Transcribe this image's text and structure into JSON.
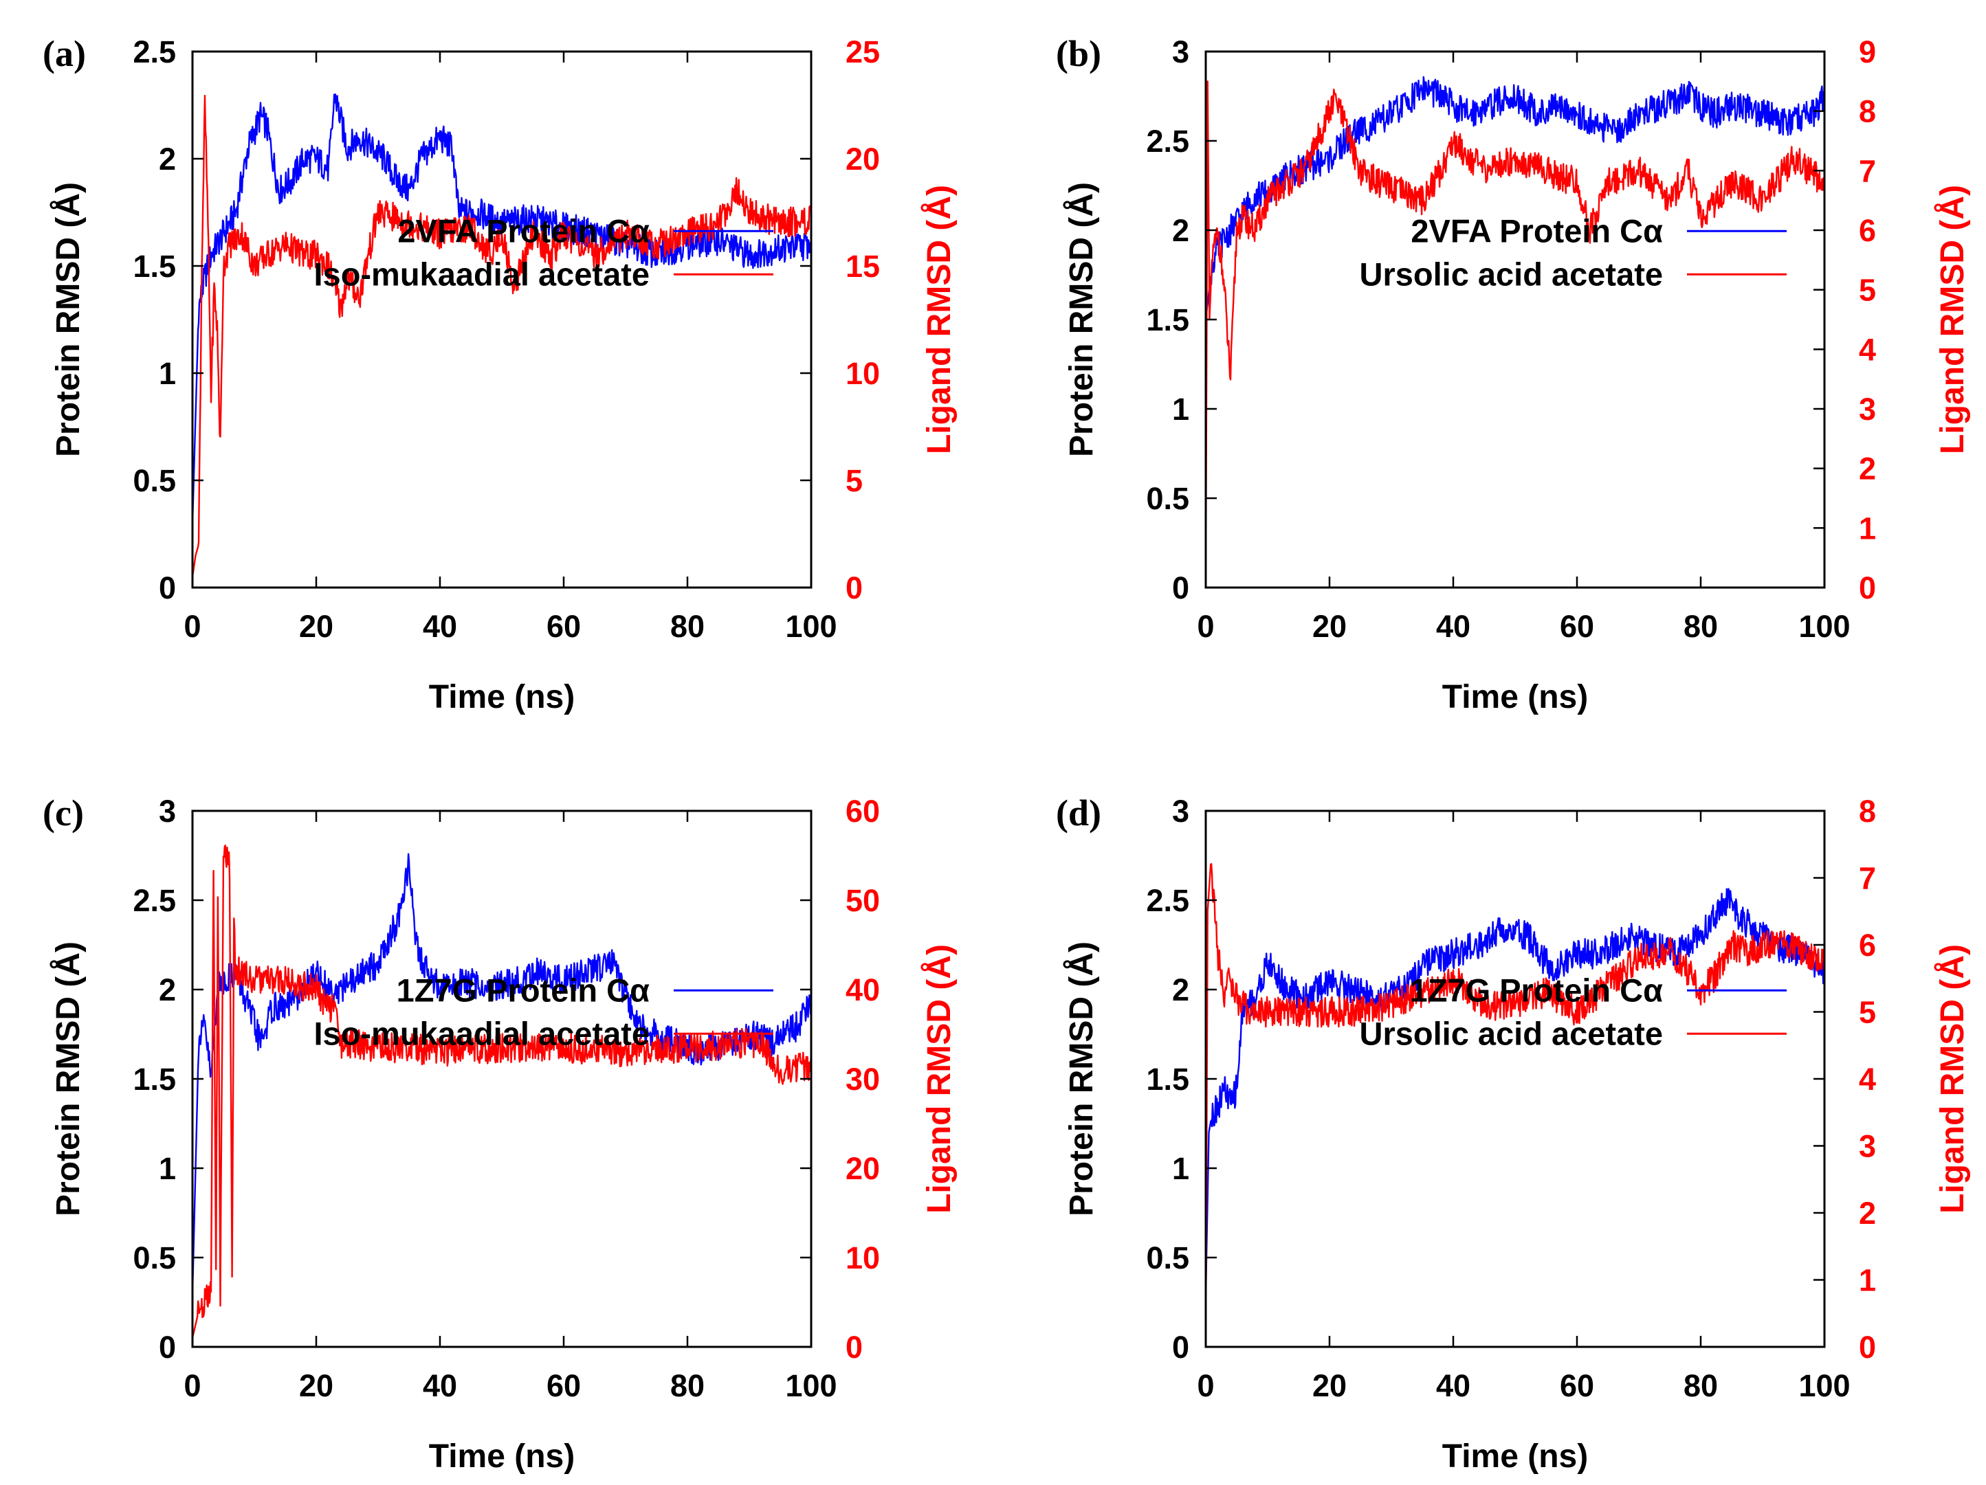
{
  "colors": {
    "protein": "#0000ff",
    "ligand": "#ff0000",
    "axis": "#000000"
  },
  "chart_data": [
    {
      "panel": "(a)",
      "type": "line",
      "xlabel": "Time (ns)",
      "ylabel": "Protein RMSD (Å)",
      "y2label": "Ligand RMSD (Å)",
      "xlim": [
        0,
        100
      ],
      "ylim": [
        0,
        2.5
      ],
      "y2lim": [
        0,
        25
      ],
      "xticks": [
        0,
        20,
        40,
        60,
        80,
        100
      ],
      "yticks": [
        0,
        0.5,
        1,
        1.5,
        2,
        2.5
      ],
      "y2ticks": [
        0,
        5,
        10,
        15,
        20,
        25
      ],
      "legend_position": "center-right",
      "series": [
        {
          "name": "2VFA Protein Cα",
          "axis": "left",
          "color": "#0000ff",
          "x": [
            0,
            1,
            2,
            3,
            5,
            7,
            9,
            11,
            12,
            14,
            16,
            18,
            20,
            22,
            23,
            25,
            27,
            29,
            31,
            33,
            35,
            37,
            40,
            42,
            43,
            46,
            50,
            55,
            60,
            65,
            70,
            75,
            80,
            85,
            90,
            95,
            100
          ],
          "y": [
            0.3,
            1.3,
            1.45,
            1.55,
            1.65,
            1.75,
            2.05,
            2.2,
            2.15,
            1.85,
            1.9,
            2.0,
            2.0,
            1.95,
            2.3,
            2.05,
            2.1,
            2.05,
            2.0,
            1.9,
            1.85,
            2.0,
            2.1,
            2.05,
            1.75,
            1.75,
            1.7,
            1.72,
            1.68,
            1.65,
            1.6,
            1.55,
            1.6,
            1.62,
            1.55,
            1.58,
            1.6
          ]
        },
        {
          "name": "Iso-mukaadial acetate",
          "axis": "right",
          "color": "#ff0000",
          "x": [
            0,
            0.5,
            1,
            1.5,
            2,
            2.5,
            3,
            3.5,
            4,
            4.5,
            5,
            6,
            8,
            10,
            12,
            15,
            18,
            20,
            22,
            24,
            25,
            27,
            28,
            30,
            35,
            40,
            45,
            48,
            50,
            52,
            55,
            58,
            60,
            65,
            70,
            75,
            80,
            85,
            88,
            90,
            95,
            100
          ],
          "y": [
            0.5,
            1.5,
            2,
            15,
            22.5,
            17,
            9,
            14,
            12,
            6.5,
            15,
            16,
            16.5,
            15,
            15.5,
            16,
            15.5,
            15.5,
            15,
            13,
            14.5,
            13.5,
            15,
            17.5,
            17,
            16.5,
            16.8,
            15.5,
            16.5,
            14,
            16.5,
            15.5,
            16.5,
            15.5,
            16.5,
            16,
            16.5,
            17,
            18.5,
            17.5,
            17,
            17.2
          ]
        }
      ]
    },
    {
      "panel": "(b)",
      "type": "line",
      "xlabel": "Time (ns)",
      "ylabel": "Protein RMSD (Å)",
      "y2label": "Ligand RMSD (Å)",
      "xlim": [
        0,
        100
      ],
      "ylim": [
        0,
        3
      ],
      "y2lim": [
        0,
        9
      ],
      "xticks": [
        0,
        20,
        40,
        60,
        80,
        100
      ],
      "yticks": [
        0,
        0.5,
        1,
        1.5,
        2,
        2.5,
        3
      ],
      "y2ticks": [
        0,
        1,
        2,
        3,
        4,
        5,
        6,
        7,
        8,
        9
      ],
      "legend_position": "center-right",
      "series": [
        {
          "name": "2VFA Protein Cα",
          "axis": "left",
          "color": "#0000ff",
          "x": [
            0,
            1,
            2,
            4,
            6,
            8,
            10,
            13,
            16,
            20,
            24,
            28,
            32,
            35,
            38,
            42,
            46,
            50,
            54,
            58,
            62,
            66,
            70,
            74,
            78,
            82,
            86,
            90,
            94,
            98,
            100
          ],
          "y": [
            1.5,
            1.8,
            1.9,
            2.0,
            2.1,
            2.2,
            2.2,
            2.3,
            2.35,
            2.4,
            2.55,
            2.6,
            2.7,
            2.8,
            2.75,
            2.65,
            2.7,
            2.75,
            2.65,
            2.7,
            2.6,
            2.55,
            2.65,
            2.7,
            2.75,
            2.65,
            2.7,
            2.65,
            2.6,
            2.65,
            2.75
          ]
        },
        {
          "name": "Ursolic acid acetate",
          "axis": "right",
          "color": "#ff0000",
          "x": [
            0,
            0.3,
            0.6,
            1,
            2,
            3,
            4,
            5,
            6,
            8,
            10,
            13,
            16,
            18,
            20,
            21,
            23,
            25,
            28,
            30,
            35,
            38,
            40,
            45,
            50,
            55,
            60,
            62,
            65,
            70,
            75,
            78,
            80,
            85,
            90,
            95,
            100
          ],
          "y": [
            0,
            8.5,
            4.5,
            5.5,
            6,
            5,
            3.5,
            6,
            6.2,
            6,
            6.5,
            6.8,
            7,
            7.5,
            8,
            8.2,
            7.6,
            7,
            6.8,
            6.7,
            6.5,
            7,
            7.5,
            7,
            7.2,
            7,
            6.8,
            6.0,
            6.8,
            7,
            6.5,
            7.0,
            6.2,
            6.8,
            6.5,
            7.2,
            6.8
          ]
        }
      ]
    },
    {
      "panel": "(c)",
      "type": "line",
      "xlabel": "Time (ns)",
      "ylabel": "Protein RMSD (Å)",
      "y2label": "Ligand RMSD (Å)",
      "xlim": [
        0,
        100
      ],
      "ylim": [
        0,
        3
      ],
      "y2lim": [
        0,
        60
      ],
      "xticks": [
        0,
        20,
        40,
        60,
        80,
        100
      ],
      "yticks": [
        0,
        0.5,
        1,
        1.5,
        2,
        2.5,
        3
      ],
      "y2ticks": [
        0,
        10,
        20,
        30,
        40,
        50,
        60
      ],
      "legend_position": "center-right",
      "series": [
        {
          "name": "1Z7G Protein Cα",
          "axis": "left",
          "color": "#0000ff",
          "x": [
            0,
            1,
            2,
            3,
            4,
            5,
            7,
            9,
            11,
            13,
            15,
            18,
            20,
            22,
            24,
            26,
            28,
            30,
            32,
            34,
            35,
            36,
            38,
            40,
            44,
            48,
            52,
            56,
            60,
            64,
            68,
            70,
            72,
            75,
            78,
            82,
            86,
            90,
            94,
            98,
            100
          ],
          "y": [
            0.3,
            1.7,
            1.8,
            1.5,
            2.0,
            2.05,
            2.1,
            1.9,
            1.7,
            1.9,
            1.9,
            2.0,
            2.1,
            2.0,
            2.0,
            2.05,
            2.1,
            2.15,
            2.3,
            2.45,
            2.75,
            2.25,
            2.1,
            2.0,
            2.05,
            2.0,
            2.05,
            2.1,
            2.05,
            2.1,
            2.15,
            1.95,
            1.8,
            1.75,
            1.7,
            1.65,
            1.7,
            1.75,
            1.7,
            1.8,
            1.95
          ]
        },
        {
          "name": "Iso-mukaadial acetate",
          "axis": "right",
          "color": "#ff0000",
          "x": [
            0,
            1,
            2,
            3,
            3.4,
            3.8,
            4.1,
            4.5,
            5,
            5.5,
            6,
            6.4,
            6.7,
            7,
            8,
            10,
            15,
            20,
            22,
            23,
            24,
            26,
            30,
            35,
            40,
            50,
            60,
            70,
            80,
            90,
            92,
            94,
            95,
            97,
            100
          ],
          "y": [
            1,
            4,
            5,
            6,
            53,
            8,
            52,
            6,
            55,
            55,
            54,
            8,
            48,
            42,
            42,
            41,
            41,
            40,
            38,
            38,
            34,
            34,
            33.5,
            33.5,
            33,
            33.5,
            33.5,
            33,
            33.5,
            34,
            34,
            32,
            31,
            31,
            31.5
          ]
        }
      ]
    },
    {
      "panel": "(d)",
      "type": "line",
      "xlabel": "Time (ns)",
      "ylabel": "Protein RMSD (Å)",
      "y2label": "Ligand RMSD (Å)",
      "xlim": [
        0,
        100
      ],
      "ylim": [
        0,
        3
      ],
      "y2lim": [
        0,
        8
      ],
      "xticks": [
        0,
        20,
        40,
        60,
        80,
        100
      ],
      "yticks": [
        0,
        0.5,
        1,
        1.5,
        2,
        2.5,
        3
      ],
      "y2ticks": [
        0,
        1,
        2,
        3,
        4,
        5,
        6,
        7,
        8
      ],
      "legend_position": "center-right",
      "series": [
        {
          "name": "1Z7G Protein Cα",
          "axis": "left",
          "color": "#0000ff",
          "x": [
            0,
            0.5,
            1,
            2,
            3,
            4,
            5,
            6,
            8,
            10,
            13,
            16,
            20,
            24,
            28,
            32,
            36,
            40,
            44,
            48,
            52,
            56,
            60,
            64,
            68,
            72,
            76,
            80,
            84,
            88,
            92,
            96,
            100
          ],
          "y": [
            0.3,
            1.2,
            1.3,
            1.35,
            1.45,
            1.35,
            1.45,
            1.9,
            1.95,
            2.15,
            2.0,
            1.95,
            2.05,
            2.0,
            1.95,
            2.0,
            2.15,
            2.2,
            2.25,
            2.35,
            2.3,
            2.1,
            2.2,
            2.2,
            2.3,
            2.25,
            2.2,
            2.3,
            2.5,
            2.35,
            2.25,
            2.2,
            2.1
          ]
        },
        {
          "name": "Ursolic acid acetate",
          "axis": "right",
          "color": "#ff0000",
          "x": [
            0,
            0.3,
            0.8,
            1.2,
            2,
            3,
            4,
            5,
            7,
            10,
            15,
            20,
            25,
            30,
            35,
            40,
            45,
            50,
            55,
            60,
            65,
            70,
            75,
            78,
            80,
            82,
            85,
            88,
            90,
            95,
            100
          ],
          "y": [
            0,
            6.5,
            7.2,
            6.8,
            5.8,
            5.3,
            5.5,
            5.2,
            5.0,
            5.0,
            5.0,
            5.0,
            5.0,
            5.1,
            5.3,
            5.5,
            5.1,
            5.1,
            5.3,
            5.0,
            5.4,
            5.8,
            5.9,
            5.6,
            5.3,
            5.5,
            6.0,
            5.9,
            6.0,
            6.0,
            5.7
          ]
        }
      ]
    }
  ]
}
